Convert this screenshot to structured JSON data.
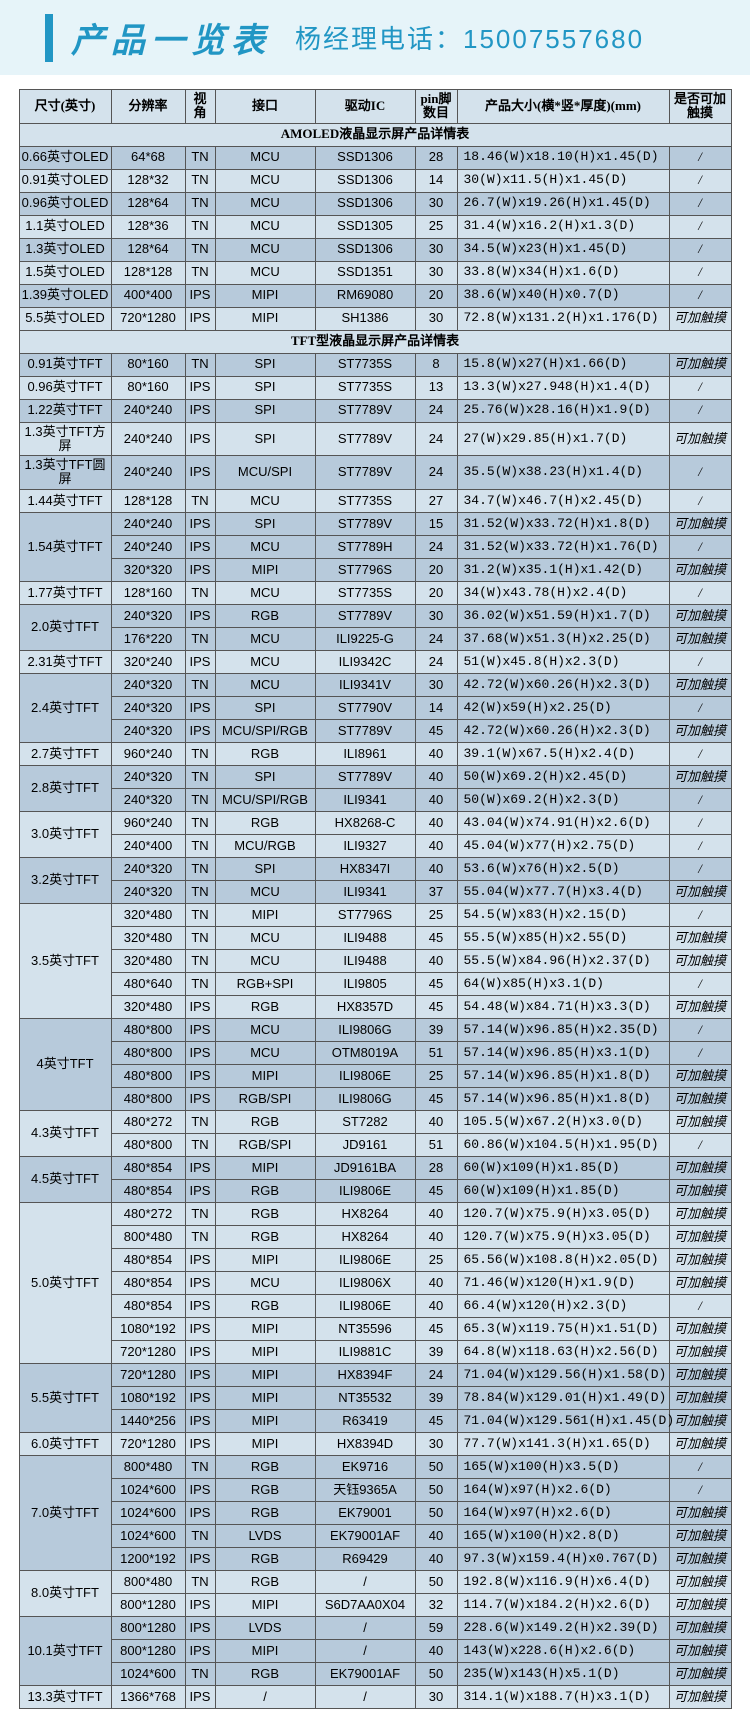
{
  "header": {
    "title": "产品一览表",
    "contact": "杨经理电话：15007557680"
  },
  "columns": [
    "尺寸(英寸)",
    "分辨率",
    "视角",
    "接口",
    "驱动IC",
    "pin脚数目",
    "产品大小(横*竖*厚度)(mm)",
    "是否可加触摸"
  ],
  "sections": [
    {
      "title": "AMOLED液晶显示屏产品详情表",
      "rows": [
        [
          "0.66英寸OLED",
          "64*68",
          "TN",
          "MCU",
          "SSD1306",
          "28",
          "18.46(W)x18.10(H)x1.45(D)",
          "/"
        ],
        [
          "0.91英寸OLED",
          "128*32",
          "TN",
          "MCU",
          "SSD1306",
          "14",
          "30(W)x11.5(H)x1.45(D)",
          "/"
        ],
        [
          "0.96英寸OLED",
          "128*64",
          "TN",
          "MCU",
          "SSD1306",
          "30",
          "26.7(W)x19.26(H)x1.45(D)",
          "/"
        ],
        [
          "1.1英寸OLED",
          "128*36",
          "TN",
          "MCU",
          "SSD1305",
          "25",
          "31.4(W)x16.2(H)x1.3(D)",
          "/"
        ],
        [
          "1.3英寸OLED",
          "128*64",
          "TN",
          "MCU",
          "SSD1306",
          "30",
          "34.5(W)x23(H)x1.45(D)",
          "/"
        ],
        [
          "1.5英寸OLED",
          "128*128",
          "TN",
          "MCU",
          "SSD1351",
          "30",
          "33.8(W)x34(H)x1.6(D)",
          "/"
        ],
        [
          "1.39英寸OLED",
          "400*400",
          "IPS",
          "MIPI",
          "RM69080",
          "20",
          "38.6(W)x40(H)x0.7(D)",
          "/"
        ],
        [
          "5.5英寸OLED",
          "720*1280",
          "IPS",
          "MIPI",
          "SH1386",
          "30",
          "72.8(W)x131.2(H)x1.176(D)",
          "可加触摸"
        ]
      ]
    },
    {
      "title": "TFT型液晶显示屏产品详情表",
      "rows": [
        [
          "0.91英寸TFT",
          "80*160",
          "TN",
          "SPI",
          "ST7735S",
          "8",
          "15.8(W)x27(H)x1.66(D)",
          "可加触摸"
        ],
        [
          "0.96英寸TFT",
          "80*160",
          "IPS",
          "SPI",
          "ST7735S",
          "13",
          "13.3(W)x27.948(H)x1.4(D)",
          "/"
        ],
        [
          "1.22英寸TFT",
          "240*240",
          "IPS",
          "SPI",
          "ST7789V",
          "24",
          "25.76(W)x28.16(H)x1.9(D)",
          "/"
        ],
        [
          "1.3英寸TFT方屏",
          "240*240",
          "IPS",
          "SPI",
          "ST7789V",
          "24",
          "27(W)x29.85(H)x1.7(D)",
          "可加触摸"
        ],
        [
          "1.3英寸TFT圆屏",
          "240*240",
          "IPS",
          "MCU/SPI",
          "ST7789V",
          "24",
          "35.5(W)x38.23(H)x1.4(D)",
          "/"
        ],
        [
          "1.44英寸TFT",
          "128*128",
          "TN",
          "MCU",
          "ST7735S",
          "27",
          "34.7(W)x46.7(H)x2.45(D)",
          "/"
        ],
        [
          {
            "text": "1.54英寸TFT",
            "rowspan": 3
          },
          "240*240",
          "IPS",
          "SPI",
          "ST7789V",
          "15",
          "31.52(W)x33.72(H)x1.8(D)",
          "可加触摸"
        ],
        [
          null,
          "240*240",
          "IPS",
          "MCU",
          "ST7789H",
          "24",
          "31.52(W)x33.72(H)x1.76(D)",
          "/"
        ],
        [
          null,
          "320*320",
          "IPS",
          "MIPI",
          "ST7796S",
          "20",
          "31.2(W)x35.1(H)x1.42(D)",
          "可加触摸"
        ],
        [
          "1.77英寸TFT",
          "128*160",
          "TN",
          "MCU",
          "ST7735S",
          "20",
          "34(W)x43.78(H)x2.4(D)",
          "/"
        ],
        [
          {
            "text": "2.0英寸TFT",
            "rowspan": 2
          },
          "240*320",
          "IPS",
          "RGB",
          "ST7789V",
          "30",
          "36.02(W)x51.59(H)x1.7(D)",
          "可加触摸"
        ],
        [
          null,
          "176*220",
          "TN",
          "MCU",
          "ILI9225-G",
          "24",
          "37.68(W)x51.3(H)x2.25(D)",
          "可加触摸"
        ],
        [
          "2.31英寸TFT",
          "320*240",
          "IPS",
          "MCU",
          "ILI9342C",
          "24",
          "51(W)x45.8(H)x2.3(D)",
          "/"
        ],
        [
          {
            "text": "2.4英寸TFT",
            "rowspan": 3
          },
          "240*320",
          "TN",
          "MCU",
          "ILI9341V",
          "30",
          "42.72(W)x60.26(H)x2.3(D)",
          "可加触摸"
        ],
        [
          null,
          "240*320",
          "IPS",
          "SPI",
          "ST7790V",
          "14",
          "42(W)x59(H)x2.25(D)",
          "/"
        ],
        [
          null,
          "240*320",
          "IPS",
          "MCU/SPI/RGB",
          "ST7789V",
          "45",
          "42.72(W)x60.26(H)x2.3(D)",
          "可加触摸"
        ],
        [
          "2.7英寸TFT",
          "960*240",
          "TN",
          "RGB",
          "ILI8961",
          "40",
          "39.1(W)x67.5(H)x2.4(D)",
          "/"
        ],
        [
          {
            "text": "2.8英寸TFT",
            "rowspan": 2
          },
          "240*320",
          "TN",
          "SPI",
          "ST7789V",
          "40",
          "50(W)x69.2(H)x2.45(D)",
          "可加触摸"
        ],
        [
          null,
          "240*320",
          "TN",
          "MCU/SPI/RGB",
          "ILI9341",
          "40",
          "50(W)x69.2(H)x2.3(D)",
          "/"
        ],
        [
          {
            "text": "3.0英寸TFT",
            "rowspan": 2
          },
          "960*240",
          "TN",
          "RGB",
          "HX8268-C",
          "40",
          "43.04(W)x74.91(H)x2.6(D)",
          "/"
        ],
        [
          null,
          "240*400",
          "TN",
          "MCU/RGB",
          "ILI9327",
          "40",
          "45.04(W)x77(H)x2.75(D)",
          "/"
        ],
        [
          {
            "text": "3.2英寸TFT",
            "rowspan": 2
          },
          "240*320",
          "TN",
          "SPI",
          "HX8347I",
          "40",
          "53.6(W)x76(H)x2.5(D)",
          "/"
        ],
        [
          null,
          "240*320",
          "TN",
          "MCU",
          "ILI9341",
          "37",
          "55.04(W)x77.7(H)x3.4(D)",
          "可加触摸"
        ],
        [
          {
            "text": "3.5英寸TFT",
            "rowspan": 5
          },
          "320*480",
          "TN",
          "MIPI",
          "ST7796S",
          "25",
          "54.5(W)x83(H)x2.15(D)",
          "/"
        ],
        [
          null,
          "320*480",
          "TN",
          "MCU",
          "ILI9488",
          "45",
          "55.5(W)x85(H)x2.55(D)",
          "可加触摸"
        ],
        [
          null,
          "320*480",
          "TN",
          "MCU",
          "ILI9488",
          "40",
          "55.5(W)x84.96(H)x2.37(D)",
          "可加触摸"
        ],
        [
          null,
          "480*640",
          "TN",
          "RGB+SPI",
          "ILI9805",
          "45",
          "64(W)x85(H)x3.1(D)",
          "/"
        ],
        [
          null,
          "320*480",
          "IPS",
          "RGB",
          "HX8357D",
          "45",
          "54.48(W)x84.71(H)x3.3(D)",
          "可加触摸"
        ],
        [
          {
            "text": "4英寸TFT",
            "rowspan": 4
          },
          "480*800",
          "IPS",
          "MCU",
          "ILI9806G",
          "39",
          "57.14(W)x96.85(H)x2.35(D)",
          "/"
        ],
        [
          null,
          "480*800",
          "IPS",
          "MCU",
          "OTM8019A",
          "51",
          "57.14(W)x96.85(H)x3.1(D)",
          "/"
        ],
        [
          null,
          "480*800",
          "IPS",
          "MIPI",
          "ILI9806E",
          "25",
          "57.14(W)x96.85(H)x1.8(D)",
          "可加触摸"
        ],
        [
          null,
          "480*800",
          "IPS",
          "RGB/SPI",
          "ILI9806G",
          "45",
          "57.14(W)x96.85(H)x1.8(D)",
          "可加触摸"
        ],
        [
          {
            "text": "4.3英寸TFT",
            "rowspan": 2
          },
          "480*272",
          "TN",
          "RGB",
          "ST7282",
          "40",
          "105.5(W)x67.2(H)x3.0(D)",
          "可加触摸"
        ],
        [
          null,
          "480*800",
          "TN",
          "RGB/SPI",
          "JD9161",
          "51",
          "60.86(W)x104.5(H)x1.95(D)",
          "/"
        ],
        [
          {
            "text": "4.5英寸TFT",
            "rowspan": 2
          },
          "480*854",
          "IPS",
          "MIPI",
          "JD9161BA",
          "28",
          "60(W)x109(H)x1.85(D)",
          "可加触摸"
        ],
        [
          null,
          "480*854",
          "IPS",
          "RGB",
          "ILI9806E",
          "45",
          "60(W)x109(H)x1.85(D)",
          "可加触摸"
        ],
        [
          {
            "text": "5.0英寸TFT",
            "rowspan": 7
          },
          "480*272",
          "TN",
          "RGB",
          "HX8264",
          "40",
          "120.7(W)x75.9(H)x3.05(D)",
          "可加触摸"
        ],
        [
          null,
          "800*480",
          "TN",
          "RGB",
          "HX8264",
          "40",
          "120.7(W)x75.9(H)x3.05(D)",
          "可加触摸"
        ],
        [
          null,
          "480*854",
          "IPS",
          "MIPI",
          "ILI9806E",
          "25",
          "65.56(W)x108.8(H)x2.05(D)",
          "可加触摸"
        ],
        [
          null,
          "480*854",
          "IPS",
          "MCU",
          "ILI9806X",
          "40",
          "71.46(W)x120(H)x1.9(D)",
          "可加触摸"
        ],
        [
          null,
          "480*854",
          "IPS",
          "RGB",
          "ILI9806E",
          "40",
          "66.4(W)x120(H)x2.3(D)",
          "/"
        ],
        [
          null,
          "1080*192",
          "IPS",
          "MIPI",
          "NT35596",
          "45",
          "65.3(W)x119.75(H)x1.51(D)",
          "可加触摸"
        ],
        [
          null,
          "720*1280",
          "IPS",
          "MIPI",
          "ILI9881C",
          "39",
          "64.8(W)x118.63(H)x2.56(D)",
          "可加触摸"
        ],
        [
          {
            "text": "5.5英寸TFT",
            "rowspan": 3
          },
          "720*1280",
          "IPS",
          "MIPI",
          "HX8394F",
          "24",
          "71.04(W)x129.56(H)x1.58(D)",
          "可加触摸"
        ],
        [
          null,
          "1080*192",
          "IPS",
          "MIPI",
          "NT35532",
          "39",
          "78.84(W)x129.01(H)x1.49(D)",
          "可加触摸"
        ],
        [
          null,
          "1440*256",
          "IPS",
          "MIPI",
          "R63419",
          "45",
          "71.04(W)x129.561(H)x1.45(D)",
          "可加触摸"
        ],
        [
          "6.0英寸TFT",
          "720*1280",
          "IPS",
          "MIPI",
          "HX8394D",
          "30",
          "77.7(W)x141.3(H)x1.65(D)",
          "可加触摸"
        ],
        [
          {
            "text": "7.0英寸TFT",
            "rowspan": 5
          },
          "800*480",
          "TN",
          "RGB",
          "EK9716",
          "50",
          "165(W)x100(H)x3.5(D)",
          "/"
        ],
        [
          null,
          "1024*600",
          "IPS",
          "RGB",
          "天钰9365A",
          "50",
          "164(W)x97(H)x2.6(D)",
          "/"
        ],
        [
          null,
          "1024*600",
          "IPS",
          "RGB",
          "EK79001",
          "50",
          "164(W)x97(H)x2.6(D)",
          "可加触摸"
        ],
        [
          null,
          "1024*600",
          "TN",
          "LVDS",
          "EK79001AF",
          "40",
          "165(W)x100(H)x2.8(D)",
          "可加触摸"
        ],
        [
          null,
          "1200*192",
          "IPS",
          "RGB",
          "R69429",
          "40",
          "97.3(W)x159.4(H)x0.767(D)",
          "可加触摸"
        ],
        [
          {
            "text": "8.0英寸TFT",
            "rowspan": 2
          },
          "800*480",
          "TN",
          "RGB",
          "/",
          "50",
          "192.8(W)x116.9(H)x6.4(D)",
          "可加触摸"
        ],
        [
          null,
          "800*1280",
          "IPS",
          "MIPI",
          "S6D7AA0X04",
          "32",
          "114.7(W)x184.2(H)x2.6(D)",
          "可加触摸"
        ],
        [
          {
            "text": "10.1英寸TFT",
            "rowspan": 3
          },
          "800*1280",
          "IPS",
          "LVDS",
          "/",
          "59",
          "228.6(W)x149.2(H)x2.39(D)",
          "可加触摸"
        ],
        [
          null,
          "800*1280",
          "IPS",
          "MIPI",
          "/",
          "40",
          "143(W)x228.6(H)x2.6(D)",
          "可加触摸"
        ],
        [
          null,
          "1024*600",
          "TN",
          "RGB",
          "EK79001AF",
          "50",
          "235(W)x143(H)x5.1(D)",
          "可加触摸"
        ],
        [
          "13.3英寸TFT",
          "1366*768",
          "IPS",
          "/",
          "/",
          "30",
          "314.1(W)x188.7(H)x3.1(D)",
          "可加触摸"
        ]
      ]
    }
  ],
  "colors": {
    "headerBg": "#e6f4f9",
    "accent": "#2196c4",
    "rowA": "#b7cadb",
    "rowB": "#d4e2ec",
    "border": "#555555"
  }
}
